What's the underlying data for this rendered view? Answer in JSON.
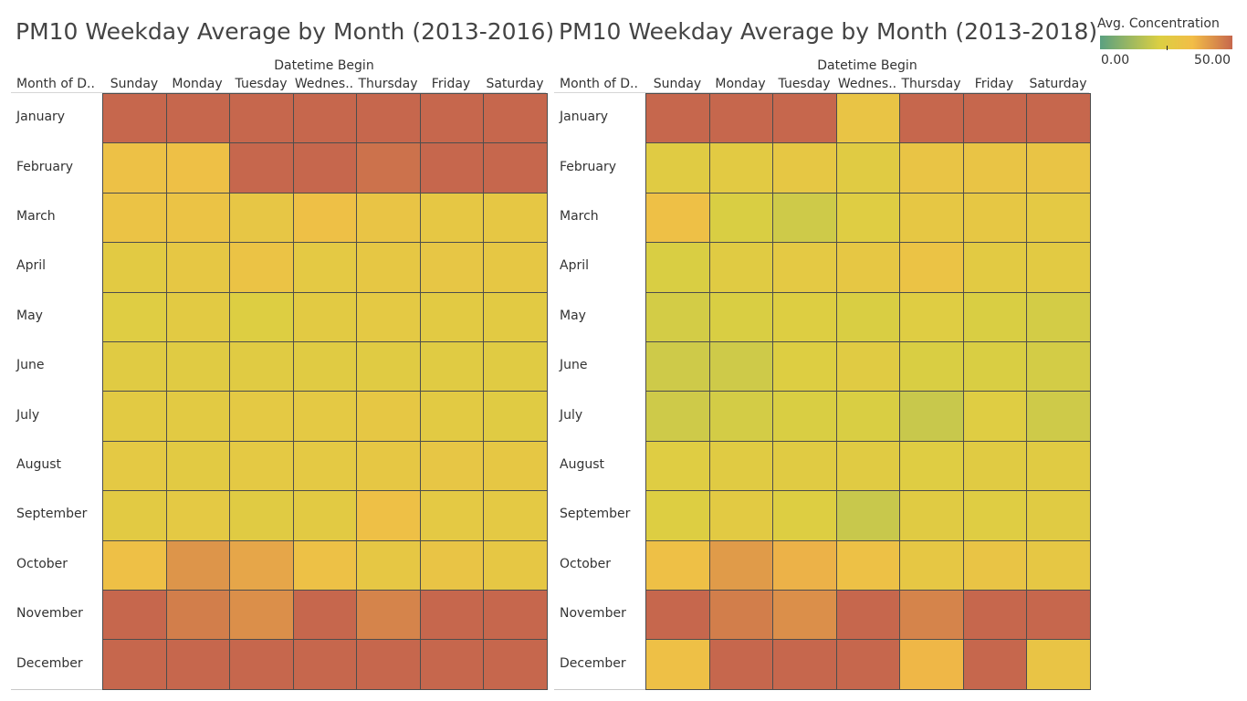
{
  "legend": {
    "title": "Avg. Concentration",
    "min_label": "0.00",
    "max_label": "50.00",
    "colors": [
      "#5aa080",
      "#dccf42",
      "#f2bd47",
      "#c6674d"
    ]
  },
  "chart_data": [
    {
      "type": "heatmap",
      "title": "PM10 Weekday Average by Month (2013-2016)",
      "column_group_label": "Datetime Begin",
      "row_field_label": "Month of D..",
      "columns": [
        "Sunday",
        "Monday",
        "Tuesday",
        "Wednes..",
        "Thursday",
        "Friday",
        "Saturday"
      ],
      "rows": [
        "January",
        "February",
        "March",
        "April",
        "May",
        "June",
        "July",
        "August",
        "September",
        "October",
        "November",
        "December"
      ],
      "value_range": [
        0,
        50
      ],
      "values": [
        [
          50,
          50,
          50,
          50,
          50,
          50,
          50
        ],
        [
          32,
          33,
          50,
          50,
          48,
          50,
          50
        ],
        [
          31,
          31,
          29,
          33,
          30,
          28,
          28
        ],
        [
          26,
          28,
          31,
          27,
          28,
          29,
          28
        ],
        [
          24,
          26,
          23,
          26,
          27,
          26,
          26
        ],
        [
          25,
          25,
          25,
          25,
          25,
          25,
          25
        ],
        [
          26,
          26,
          27,
          27,
          28,
          26,
          25
        ],
        [
          27,
          26,
          27,
          27,
          28,
          29,
          28
        ],
        [
          26,
          27,
          25,
          26,
          33,
          27,
          27
        ],
        [
          33,
          42,
          39,
          32,
          28,
          30,
          28
        ],
        [
          50,
          46,
          43,
          50,
          45,
          50,
          50
        ],
        [
          50,
          50,
          50,
          50,
          50,
          50,
          50
        ]
      ]
    },
    {
      "type": "heatmap",
      "title": "PM10 Weekday Average by Month (2013-2018)",
      "column_group_label": "Datetime Begin",
      "row_field_label": "Month of D..",
      "columns": [
        "Sunday",
        "Monday",
        "Tuesday",
        "Wednes..",
        "Thursday",
        "Friday",
        "Saturday"
      ],
      "rows": [
        "January",
        "February",
        "March",
        "April",
        "May",
        "June",
        "July",
        "August",
        "September",
        "October",
        "November",
        "December"
      ],
      "value_range": [
        0,
        50
      ],
      "values": [
        [
          50,
          50,
          50,
          30,
          50,
          50,
          50
        ],
        [
          25,
          26,
          28,
          25,
          30,
          30,
          30
        ],
        [
          33,
          22,
          20,
          24,
          28,
          28,
          27
        ],
        [
          22,
          25,
          27,
          28,
          31,
          26,
          26
        ],
        [
          21,
          22,
          23,
          22,
          24,
          22,
          21
        ],
        [
          20,
          20,
          23,
          25,
          22,
          22,
          21
        ],
        [
          20,
          21,
          22,
          22,
          19,
          24,
          20
        ],
        [
          24,
          25,
          25,
          25,
          24,
          25,
          25
        ],
        [
          23,
          26,
          23,
          19,
          25,
          24,
          25
        ],
        [
          33,
          41,
          37,
          32,
          28,
          30,
          28
        ],
        [
          50,
          46,
          43,
          50,
          45,
          50,
          50
        ],
        [
          33,
          50,
          50,
          50,
          36,
          50,
          30
        ]
      ]
    }
  ]
}
